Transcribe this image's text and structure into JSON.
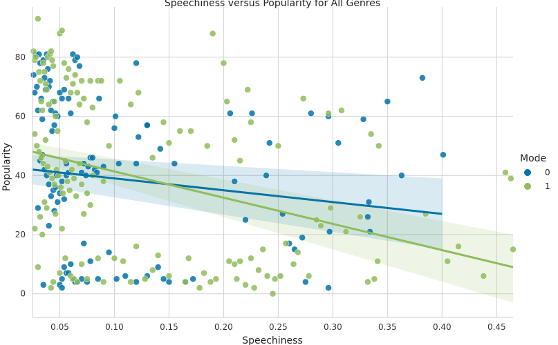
{
  "chart_data": {
    "type": "scatter",
    "title": "Speechiness versus Popularity for All Genres",
    "xlabel": "Speechiness",
    "ylabel": "Popularity",
    "xlim": [
      0.025,
      0.465
    ],
    "ylim": [
      -8,
      97
    ],
    "xticks": [
      "0.05",
      "0.10",
      "0.15",
      "0.20",
      "0.25",
      "0.30",
      "0.35",
      "0.40",
      "0.45"
    ],
    "yticks": [
      "0",
      "20",
      "40",
      "60",
      "80"
    ],
    "grid": true,
    "legend": {
      "title": "Mode",
      "placement": "right"
    },
    "series": [
      {
        "name": "0",
        "color": "#0173a8",
        "regression": {
          "x": [
            0.025,
            0.4
          ],
          "y": [
            42,
            27
          ],
          "ci_upper": [
            47,
            39
          ],
          "ci_lower": [
            37,
            15
          ]
        },
        "points": [
          [
            0.026,
            74
          ],
          [
            0.027,
            68
          ],
          [
            0.028,
            81
          ],
          [
            0.029,
            70
          ],
          [
            0.03,
            62
          ],
          [
            0.031,
            81
          ],
          [
            0.032,
            78
          ],
          [
            0.033,
            66
          ],
          [
            0.034,
            59
          ],
          [
            0.035,
            79
          ],
          [
            0.036,
            73
          ],
          [
            0.037,
            69
          ],
          [
            0.038,
            81
          ],
          [
            0.039,
            76
          ],
          [
            0.04,
            70
          ],
          [
            0.041,
            72
          ],
          [
            0.042,
            62
          ],
          [
            0.043,
            55
          ],
          [
            0.044,
            65
          ],
          [
            0.045,
            57
          ],
          [
            0.046,
            61
          ],
          [
            0.047,
            40
          ],
          [
            0.048,
            60
          ],
          [
            0.05,
            68
          ],
          [
            0.052,
            66
          ],
          [
            0.054,
            69
          ],
          [
            0.056,
            44
          ],
          [
            0.058,
            66
          ],
          [
            0.06,
            61
          ],
          [
            0.062,
            81
          ],
          [
            0.064,
            79
          ],
          [
            0.066,
            80
          ],
          [
            0.068,
            77
          ],
          [
            0.07,
            41
          ],
          [
            0.072,
            44
          ],
          [
            0.074,
            40
          ],
          [
            0.076,
            43
          ],
          [
            0.078,
            46
          ],
          [
            0.08,
            46
          ],
          [
            0.082,
            42
          ],
          [
            0.084,
            41
          ],
          [
            0.086,
            66
          ],
          [
            0.09,
            43
          ],
          [
            0.1,
            56
          ],
          [
            0.101,
            60
          ],
          [
            0.104,
            44
          ],
          [
            0.12,
            78
          ],
          [
            0.122,
            53
          ],
          [
            0.13,
            57
          ],
          [
            0.142,
            49
          ],
          [
            0.155,
            44
          ],
          [
            0.12,
            44
          ],
          [
            0.13,
            57
          ],
          [
            0.032,
            45
          ],
          [
            0.034,
            47
          ],
          [
            0.036,
            42
          ],
          [
            0.038,
            40
          ],
          [
            0.04,
            37
          ],
          [
            0.042,
            33
          ],
          [
            0.044,
            35
          ],
          [
            0.046,
            36
          ],
          [
            0.048,
            31
          ],
          [
            0.05,
            34
          ],
          [
            0.052,
            38
          ],
          [
            0.054,
            32
          ],
          [
            0.056,
            40
          ],
          [
            0.058,
            41
          ],
          [
            0.03,
            29
          ],
          [
            0.04,
            23
          ],
          [
            0.045,
            28
          ],
          [
            0.05,
            3
          ],
          [
            0.052,
            5
          ],
          [
            0.054,
            9
          ],
          [
            0.056,
            7
          ],
          [
            0.058,
            7
          ],
          [
            0.06,
            10
          ],
          [
            0.062,
            5
          ],
          [
            0.064,
            4
          ],
          [
            0.066,
            4
          ],
          [
            0.07,
            5
          ],
          [
            0.072,
            17
          ],
          [
            0.075,
            4
          ],
          [
            0.078,
            11
          ],
          [
            0.085,
            5
          ],
          [
            0.095,
            14
          ],
          [
            0.102,
            5
          ],
          [
            0.11,
            6
          ],
          [
            0.12,
            4
          ],
          [
            0.13,
            6
          ],
          [
            0.14,
            9
          ],
          [
            0.145,
            5
          ],
          [
            0.15,
            4
          ],
          [
            0.165,
            4
          ],
          [
            0.172,
            5
          ],
          [
            0.052,
            2
          ],
          [
            0.035,
            3
          ],
          [
            0.206,
            61
          ],
          [
            0.21,
            38
          ],
          [
            0.22,
            25
          ],
          [
            0.226,
            61
          ],
          [
            0.239,
            40
          ],
          [
            0.242,
            51
          ],
          [
            0.254,
            27
          ],
          [
            0.26,
            17
          ],
          [
            0.265,
            15
          ],
          [
            0.272,
            19
          ],
          [
            0.275,
            4
          ],
          [
            0.28,
            61
          ],
          [
            0.296,
            60
          ],
          [
            0.297,
            21
          ],
          [
            0.296,
            2
          ],
          [
            0.305,
            51
          ],
          [
            0.328,
            59
          ],
          [
            0.333,
            31
          ],
          [
            0.332,
            26
          ],
          [
            0.334,
            21
          ],
          [
            0.35,
            65
          ],
          [
            0.363,
            40
          ],
          [
            0.382,
            73
          ],
          [
            0.401,
            47
          ]
        ]
      },
      {
        "name": "1",
        "color": "#8fbc5a",
        "regression": {
          "x": [
            0.025,
            0.465
          ],
          "y": [
            48,
            9
          ],
          "ci_upper": [
            51,
            20
          ],
          "ci_lower": [
            45,
            -3
          ]
        },
        "points": [
          [
            0.026,
            82
          ],
          [
            0.027,
            79
          ],
          [
            0.028,
            80
          ],
          [
            0.03,
            93
          ],
          [
            0.031,
            75
          ],
          [
            0.032,
            72
          ],
          [
            0.033,
            65
          ],
          [
            0.034,
            62
          ],
          [
            0.035,
            78
          ],
          [
            0.036,
            75
          ],
          [
            0.037,
            71
          ],
          [
            0.038,
            69
          ],
          [
            0.039,
            80
          ],
          [
            0.04,
            64
          ],
          [
            0.041,
            81
          ],
          [
            0.042,
            82
          ],
          [
            0.043,
            79
          ],
          [
            0.044,
            77
          ],
          [
            0.045,
            65
          ],
          [
            0.046,
            60
          ],
          [
            0.048,
            55
          ],
          [
            0.05,
            88
          ],
          [
            0.052,
            89
          ],
          [
            0.054,
            78
          ],
          [
            0.056,
            73
          ],
          [
            0.058,
            76
          ],
          [
            0.06,
            68
          ],
          [
            0.062,
            71
          ],
          [
            0.064,
            74
          ],
          [
            0.066,
            68
          ],
          [
            0.068,
            64
          ],
          [
            0.07,
            72
          ],
          [
            0.072,
            66
          ],
          [
            0.075,
            58
          ],
          [
            0.078,
            72
          ],
          [
            0.08,
            63
          ],
          [
            0.085,
            72
          ],
          [
            0.088,
            72
          ],
          [
            0.095,
            50
          ],
          [
            0.105,
            72
          ],
          [
            0.115,
            64
          ],
          [
            0.122,
            68
          ],
          [
            0.135,
            46
          ],
          [
            0.145,
            58
          ],
          [
            0.15,
            51
          ],
          [
            0.16,
            55
          ],
          [
            0.17,
            55
          ],
          [
            0.185,
            50
          ],
          [
            0.19,
            88
          ],
          [
            0.2,
            78
          ],
          [
            0.203,
            65
          ],
          [
            0.21,
            52
          ],
          [
            0.215,
            45
          ],
          [
            0.222,
            69
          ],
          [
            0.225,
            58
          ],
          [
            0.25,
            50
          ],
          [
            0.273,
            66
          ],
          [
            0.296,
            61
          ],
          [
            0.308,
            62
          ],
          [
            0.335,
            54
          ],
          [
            0.342,
            50
          ],
          [
            0.027,
            54
          ],
          [
            0.029,
            50
          ],
          [
            0.031,
            48
          ],
          [
            0.033,
            46
          ],
          [
            0.035,
            44
          ],
          [
            0.037,
            52
          ],
          [
            0.039,
            43
          ],
          [
            0.041,
            41
          ],
          [
            0.043,
            39
          ],
          [
            0.045,
            37
          ],
          [
            0.047,
            42
          ],
          [
            0.049,
            40
          ],
          [
            0.051,
            36
          ],
          [
            0.053,
            34
          ],
          [
            0.055,
            45
          ],
          [
            0.057,
            38
          ],
          [
            0.059,
            35
          ],
          [
            0.061,
            42
          ],
          [
            0.063,
            39
          ],
          [
            0.065,
            33
          ],
          [
            0.068,
            44
          ],
          [
            0.07,
            37
          ],
          [
            0.072,
            27
          ],
          [
            0.075,
            34
          ],
          [
            0.078,
            30
          ],
          [
            0.08,
            40
          ],
          [
            0.09,
            38
          ],
          [
            0.032,
            26
          ],
          [
            0.034,
            20
          ],
          [
            0.036,
            31
          ],
          [
            0.038,
            29
          ],
          [
            0.046,
            27
          ],
          [
            0.052,
            22
          ],
          [
            0.027,
            22
          ],
          [
            0.03,
            9
          ],
          [
            0.042,
            2
          ],
          [
            0.044,
            4
          ],
          [
            0.05,
            7
          ],
          [
            0.055,
            12
          ],
          [
            0.06,
            6
          ],
          [
            0.063,
            5
          ],
          [
            0.066,
            4
          ],
          [
            0.07,
            10
          ],
          [
            0.075,
            5
          ],
          [
            0.085,
            12
          ],
          [
            0.09,
            4
          ],
          [
            0.1,
            12
          ],
          [
            0.108,
            11
          ],
          [
            0.115,
            4
          ],
          [
            0.12,
            16
          ],
          [
            0.128,
            5
          ],
          [
            0.135,
            8
          ],
          [
            0.14,
            13
          ],
          [
            0.15,
            6
          ],
          [
            0.165,
            4
          ],
          [
            0.168,
            12
          ],
          [
            0.178,
            2
          ],
          [
            0.182,
            7
          ],
          [
            0.188,
            4
          ],
          [
            0.193,
            5
          ],
          [
            0.205,
            11
          ],
          [
            0.21,
            10
          ],
          [
            0.212,
            5
          ],
          [
            0.215,
            11
          ],
          [
            0.22,
            3
          ],
          [
            0.225,
            12
          ],
          [
            0.228,
            2
          ],
          [
            0.232,
            8
          ],
          [
            0.236,
            15
          ],
          [
            0.24,
            6
          ],
          [
            0.247,
            5
          ],
          [
            0.252,
            6
          ],
          [
            0.257,
            17
          ],
          [
            0.264,
            10
          ],
          [
            0.268,
            14
          ],
          [
            0.278,
            6
          ],
          [
            0.285,
            25
          ],
          [
            0.289,
            23
          ],
          [
            0.298,
            29
          ],
          [
            0.312,
            21
          ],
          [
            0.325,
            26
          ],
          [
            0.332,
            4
          ],
          [
            0.338,
            5
          ],
          [
            0.341,
            11
          ],
          [
            0.385,
            27
          ],
          [
            0.405,
            11
          ],
          [
            0.415,
            16
          ],
          [
            0.438,
            6
          ],
          [
            0.458,
            41
          ],
          [
            0.463,
            39
          ],
          [
            0.465,
            15
          ],
          [
            0.245,
            0
          ]
        ]
      }
    ]
  }
}
